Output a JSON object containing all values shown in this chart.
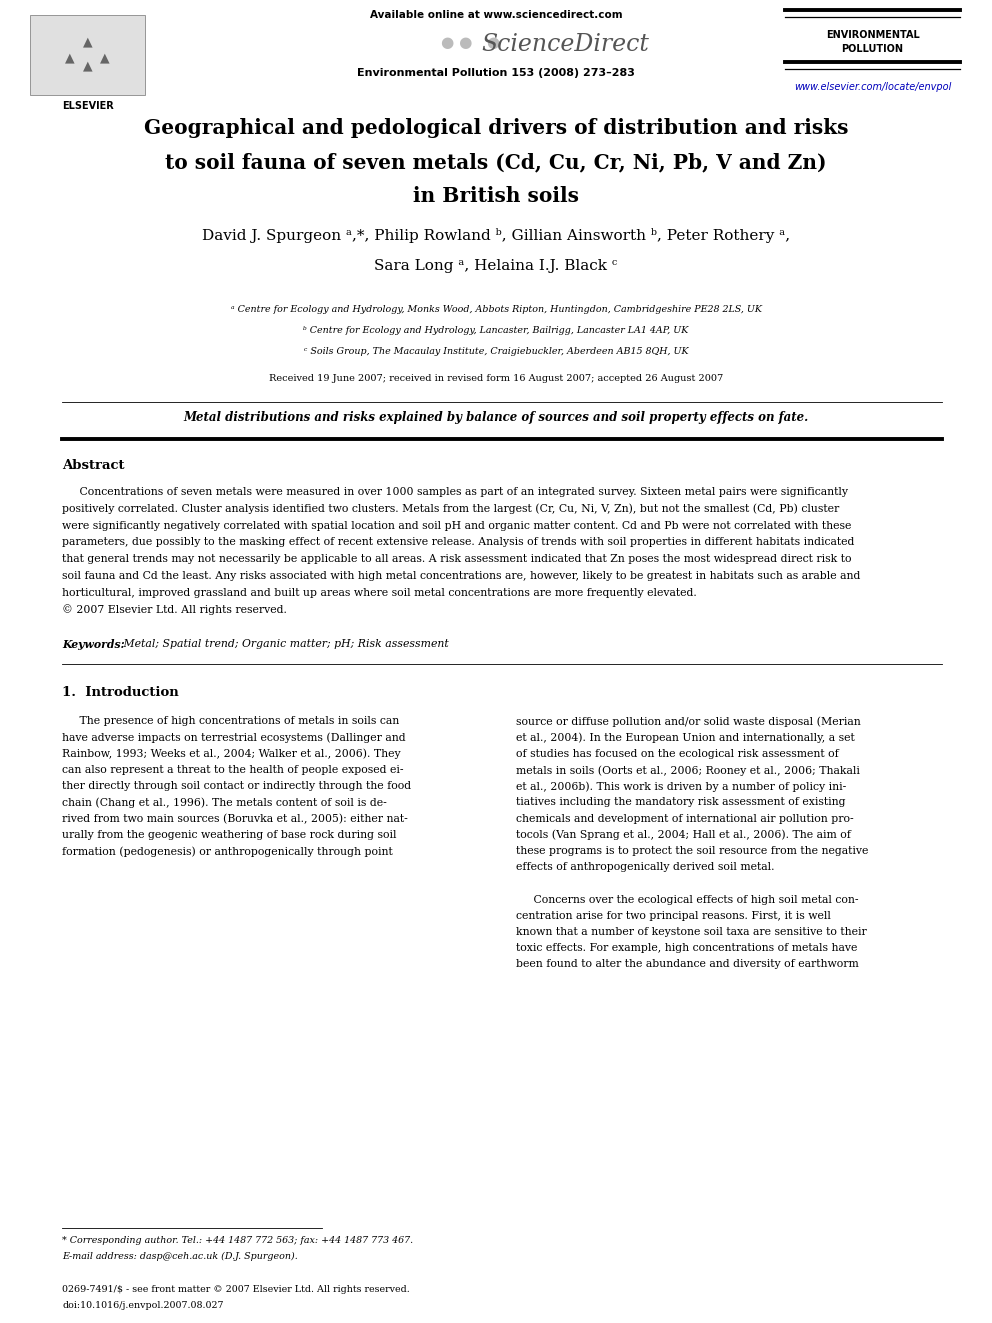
{
  "page_width": 9.92,
  "page_height": 13.23,
  "bg_color": "#ffffff",
  "header_available": "Available online at www.sciencedirect.com",
  "header_journal": "Environmental Pollution 153 (2008) 273–283",
  "env_pollution_line1": "ENVIRONMENTAL",
  "env_pollution_line2": "POLLUTION",
  "url": "www.elsevier.com/locate/envpol",
  "url_color": "#0000bb",
  "title_line1": "Geographical and pedological drivers of distribution and risks",
  "title_line2": "to soil fauna of seven metals (Cd, Cu, Cr, Ni, Pb, V and Zn)",
  "title_line3": "in British soils",
  "author_line1": "David J. Spurgeon ᵃ,*, Philip Rowland ᵇ, Gillian Ainsworth ᵇ, Peter Rothery ᵃ,",
  "author_line2": "Sara Long ᵃ, Helaina I.J. Black ᶜ",
  "aff_a": "ᵃ Centre for Ecology and Hydrology, Monks Wood, Abbots Ripton, Huntingdon, Cambridgeshire PE28 2LS, UK",
  "aff_b": "ᵇ Centre for Ecology and Hydrology, Lancaster, Bailrigg, Lancaster LA1 4AP, UK",
  "aff_c": "ᶜ Soils Group, The Macaulay Institute, Craigiebuckler, Aberdeen AB15 8QH, UK",
  "received": "Received 19 June 2007; received in revised form 16 August 2007; accepted 26 August 2007",
  "highlight": "Metal distributions and risks explained by balance of sources and soil property effects on fate.",
  "abstract_title": "Abstract",
  "abstract_lines": [
    "     Concentrations of seven metals were measured in over 1000 samples as part of an integrated survey. Sixteen metal pairs were significantly",
    "positively correlated. Cluster analysis identified two clusters. Metals from the largest (Cr, Cu, Ni, V, Zn), but not the smallest (Cd, Pb) cluster",
    "were significantly negatively correlated with spatial location and soil pH and organic matter content. Cd and Pb were not correlated with these",
    "parameters, due possibly to the masking effect of recent extensive release. Analysis of trends with soil properties in different habitats indicated",
    "that general trends may not necessarily be applicable to all areas. A risk assessment indicated that Zn poses the most widespread direct risk to",
    "soil fauna and Cd the least. Any risks associated with high metal concentrations are, however, likely to be greatest in habitats such as arable and",
    "horticultural, improved grassland and built up areas where soil metal concentrations are more frequently elevated.",
    "© 2007 Elsevier Ltd. All rights reserved."
  ],
  "keywords_italic": "Keywords:",
  "keywords_rest": " Metal; Spatial trend; Organic matter; pH; Risk assessment",
  "intro_title": "1.  Introduction",
  "intro_left_lines": [
    "     The presence of high concentrations of metals in soils can",
    "have adverse impacts on terrestrial ecosystems (Dallinger and",
    "Rainbow, 1993; Weeks et al., 2004; Walker et al., 2006). They",
    "can also represent a threat to the health of people exposed ei-",
    "ther directly through soil contact or indirectly through the food",
    "chain (Chang et al., 1996). The metals content of soil is de-",
    "rived from two main sources (Boruvka et al., 2005): either nat-",
    "urally from the geogenic weathering of base rock during soil",
    "formation (pedogenesis) or anthropogenically through point"
  ],
  "intro_right_lines": [
    "source or diffuse pollution and/or solid waste disposal (Merian",
    "et al., 2004). In the European Union and internationally, a set",
    "of studies has focused on the ecological risk assessment of",
    "metals in soils (Oorts et al., 2006; Rooney et al., 2006; Thakali",
    "et al., 2006b). This work is driven by a number of policy ini-",
    "tiatives including the mandatory risk assessment of existing",
    "chemicals and development of international air pollution pro-",
    "tocols (Van Sprang et al., 2004; Hall et al., 2006). The aim of",
    "these programs is to protect the soil resource from the negative",
    "effects of anthropogenically derived soil metal.",
    "",
    "     Concerns over the ecological effects of high soil metal con-",
    "centration arise for two principal reasons. First, it is well",
    "known that a number of keystone soil taxa are sensitive to their",
    "toxic effects. For example, high concentrations of metals have",
    "been found to alter the abundance and diversity of earthworm"
  ],
  "footnote1": "* Corresponding author. Tel.: +44 1487 772 563; fax: +44 1487 773 467.",
  "footnote2": "E-mail address: dasp@ceh.ac.uk (D.J. Spurgeon).",
  "footer1": "0269-7491/$ - see front matter © 2007 Elsevier Ltd. All rights reserved.",
  "footer2": "doi:10.1016/j.envpol.2007.08.027"
}
